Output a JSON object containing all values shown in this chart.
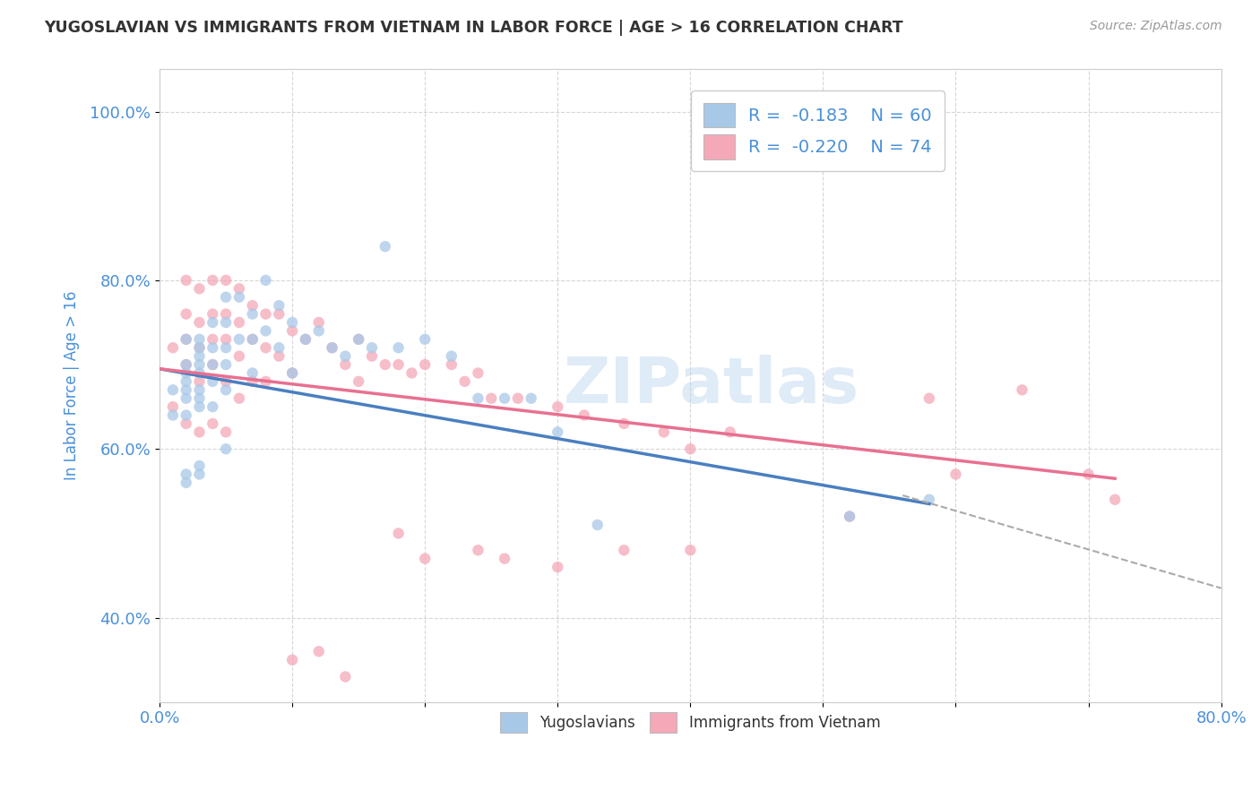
{
  "title": "YUGOSLAVIAN VS IMMIGRANTS FROM VIETNAM IN LABOR FORCE | AGE > 16 CORRELATION CHART",
  "source_text": "Source: ZipAtlas.com",
  "xlabel": "",
  "ylabel": "In Labor Force | Age > 16",
  "xlim": [
    0.0,
    0.8
  ],
  "ylim": [
    0.3,
    1.05
  ],
  "xticks": [
    0.0,
    0.1,
    0.2,
    0.3,
    0.4,
    0.5,
    0.6,
    0.7,
    0.8
  ],
  "xticklabels": [
    "0.0%",
    "",
    "",
    "",
    "",
    "",
    "",
    "",
    "80.0%"
  ],
  "yticks": [
    0.4,
    0.6,
    0.8,
    1.0
  ],
  "yticklabels": [
    "40.0%",
    "60.0%",
    "80.0%",
    "100.0%"
  ],
  "legend_r1": "R =  -0.183",
  "legend_n1": "N = 60",
  "legend_r2": "R =  -0.220",
  "legend_n2": "N = 74",
  "blue_color": "#a8c8e8",
  "pink_color": "#f4a8b8",
  "blue_line_color": "#4a7fc0",
  "pink_line_color": "#e87090",
  "watermark": "ZIPatlas",
  "background_color": "#ffffff",
  "grid_color": "#cccccc",
  "title_color": "#333333",
  "axis_label_color": "#4a90d9",
  "yugoslav_points_x": [
    0.01,
    0.01,
    0.02,
    0.02,
    0.02,
    0.02,
    0.02,
    0.02,
    0.02,
    0.02,
    0.02,
    0.03,
    0.03,
    0.03,
    0.03,
    0.03,
    0.03,
    0.03,
    0.03,
    0.03,
    0.03,
    0.04,
    0.04,
    0.04,
    0.04,
    0.04,
    0.05,
    0.05,
    0.05,
    0.05,
    0.05,
    0.05,
    0.06,
    0.06,
    0.07,
    0.07,
    0.07,
    0.08,
    0.08,
    0.09,
    0.09,
    0.1,
    0.1,
    0.11,
    0.12,
    0.13,
    0.14,
    0.15,
    0.16,
    0.17,
    0.18,
    0.2,
    0.22,
    0.24,
    0.26,
    0.28,
    0.3,
    0.33,
    0.52,
    0.58
  ],
  "yugoslav_points_y": [
    0.67,
    0.64,
    0.73,
    0.7,
    0.69,
    0.68,
    0.67,
    0.66,
    0.64,
    0.57,
    0.56,
    0.73,
    0.72,
    0.71,
    0.7,
    0.69,
    0.67,
    0.66,
    0.65,
    0.58,
    0.57,
    0.75,
    0.72,
    0.7,
    0.68,
    0.65,
    0.78,
    0.75,
    0.72,
    0.7,
    0.67,
    0.6,
    0.78,
    0.73,
    0.76,
    0.73,
    0.69,
    0.8,
    0.74,
    0.77,
    0.72,
    0.75,
    0.69,
    0.73,
    0.74,
    0.72,
    0.71,
    0.73,
    0.72,
    0.84,
    0.72,
    0.73,
    0.71,
    0.66,
    0.66,
    0.66,
    0.62,
    0.51,
    0.52,
    0.54
  ],
  "vietnam_points_x": [
    0.01,
    0.01,
    0.02,
    0.02,
    0.02,
    0.02,
    0.02,
    0.03,
    0.03,
    0.03,
    0.03,
    0.03,
    0.04,
    0.04,
    0.04,
    0.04,
    0.04,
    0.05,
    0.05,
    0.05,
    0.05,
    0.05,
    0.06,
    0.06,
    0.06,
    0.06,
    0.07,
    0.07,
    0.07,
    0.08,
    0.08,
    0.08,
    0.09,
    0.09,
    0.1,
    0.1,
    0.11,
    0.12,
    0.13,
    0.14,
    0.15,
    0.15,
    0.16,
    0.17,
    0.18,
    0.19,
    0.2,
    0.22,
    0.23,
    0.24,
    0.25,
    0.27,
    0.3,
    0.32,
    0.35,
    0.38,
    0.4,
    0.43,
    0.52,
    0.58,
    0.6,
    0.65,
    0.7,
    0.72,
    0.18,
    0.24,
    0.1,
    0.12,
    0.14,
    0.2,
    0.26,
    0.3,
    0.35,
    0.4
  ],
  "vietnam_points_y": [
    0.72,
    0.65,
    0.8,
    0.76,
    0.73,
    0.7,
    0.63,
    0.79,
    0.75,
    0.72,
    0.68,
    0.62,
    0.8,
    0.76,
    0.73,
    0.7,
    0.63,
    0.8,
    0.76,
    0.73,
    0.68,
    0.62,
    0.79,
    0.75,
    0.71,
    0.66,
    0.77,
    0.73,
    0.68,
    0.76,
    0.72,
    0.68,
    0.76,
    0.71,
    0.74,
    0.69,
    0.73,
    0.75,
    0.72,
    0.7,
    0.73,
    0.68,
    0.71,
    0.7,
    0.7,
    0.69,
    0.7,
    0.7,
    0.68,
    0.69,
    0.66,
    0.66,
    0.65,
    0.64,
    0.63,
    0.62,
    0.6,
    0.62,
    0.52,
    0.66,
    0.57,
    0.67,
    0.57,
    0.54,
    0.5,
    0.48,
    0.35,
    0.36,
    0.33,
    0.47,
    0.47,
    0.46,
    0.48,
    0.48
  ],
  "blue_line_start_x": 0.0,
  "blue_line_end_x": 0.58,
  "blue_line_start_y": 0.695,
  "blue_line_end_y": 0.535,
  "pink_line_start_x": 0.0,
  "pink_line_end_x": 0.72,
  "pink_line_start_y": 0.695,
  "pink_line_end_y": 0.565,
  "dash_line_start_x": 0.56,
  "dash_line_end_x": 0.8,
  "dash_line_start_y": 0.545,
  "dash_line_end_y": 0.435
}
